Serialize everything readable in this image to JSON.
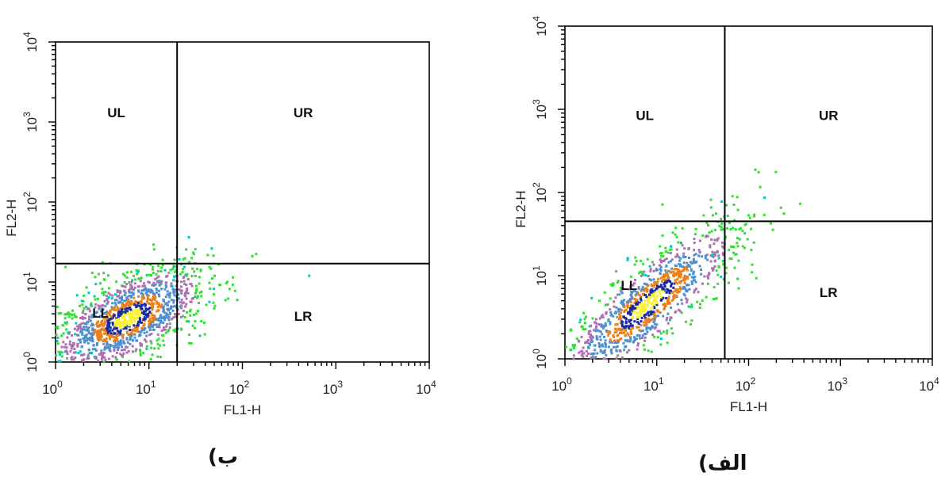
{
  "captions": {
    "left": "ب)",
    "right": "الف)"
  },
  "colors": {
    "axis": "#000000",
    "gate_line": "#000000",
    "density": [
      "#33dd33",
      "#b06fb0",
      "#4f8fd0",
      "#e8801f",
      "#1a2a9f",
      "#f8f230",
      "#00c8c0"
    ]
  },
  "chart_data": [
    {
      "type": "scatter",
      "name": "panel-b",
      "xlabel": "FL1-H",
      "ylabel": "FL2-H",
      "xscale": "log",
      "yscale": "log",
      "xlim": [
        1,
        10000
      ],
      "ylim": [
        1,
        10000
      ],
      "x_ticks": [
        {
          "base": "10",
          "exp": "0"
        },
        {
          "base": "10",
          "exp": "1"
        },
        {
          "base": "10",
          "exp": "2"
        },
        {
          "base": "10",
          "exp": "3"
        },
        {
          "base": "10",
          "exp": "4"
        }
      ],
      "y_ticks": [
        {
          "base": "10",
          "exp": "0"
        },
        {
          "base": "10",
          "exp": "1"
        },
        {
          "base": "10",
          "exp": "2"
        },
        {
          "base": "10",
          "exp": "3"
        },
        {
          "base": "10",
          "exp": "4"
        }
      ],
      "gate": {
        "x": 20,
        "y": 17
      },
      "quadrant_labels": {
        "ul": "UL",
        "ur": "UR",
        "ll": "LL",
        "lr": "LR"
      },
      "population": {
        "center_x": 6,
        "center_y": 3.5,
        "spread_x": 0.42,
        "spread_y": 0.33,
        "correlation": 0.62,
        "n_points": 1400
      }
    },
    {
      "type": "scatter",
      "name": "panel-alef",
      "xlabel": "FL1-H",
      "ylabel": "FL2-H",
      "xscale": "log",
      "yscale": "log",
      "xlim": [
        1,
        10000
      ],
      "ylim": [
        1,
        10000
      ],
      "x_ticks": [
        {
          "base": "10",
          "exp": "0"
        },
        {
          "base": "10",
          "exp": "1"
        },
        {
          "base": "10",
          "exp": "2"
        },
        {
          "base": "10",
          "exp": "3"
        },
        {
          "base": "10",
          "exp": "4"
        }
      ],
      "y_ticks": [
        {
          "base": "10",
          "exp": "0"
        },
        {
          "base": "10",
          "exp": "1"
        },
        {
          "base": "10",
          "exp": "2"
        },
        {
          "base": "10",
          "exp": "3"
        },
        {
          "base": "10",
          "exp": "4"
        }
      ],
      "gate": {
        "x": 55,
        "y": 45
      },
      "quadrant_labels": {
        "ul": "UL",
        "ur": "UR",
        "ll": "LL",
        "lr": "LR"
      },
      "population": {
        "center_x": 8,
        "center_y": 4.5,
        "spread_x": 0.5,
        "spread_y": 0.5,
        "correlation": 0.85,
        "n_points": 1200
      }
    }
  ]
}
